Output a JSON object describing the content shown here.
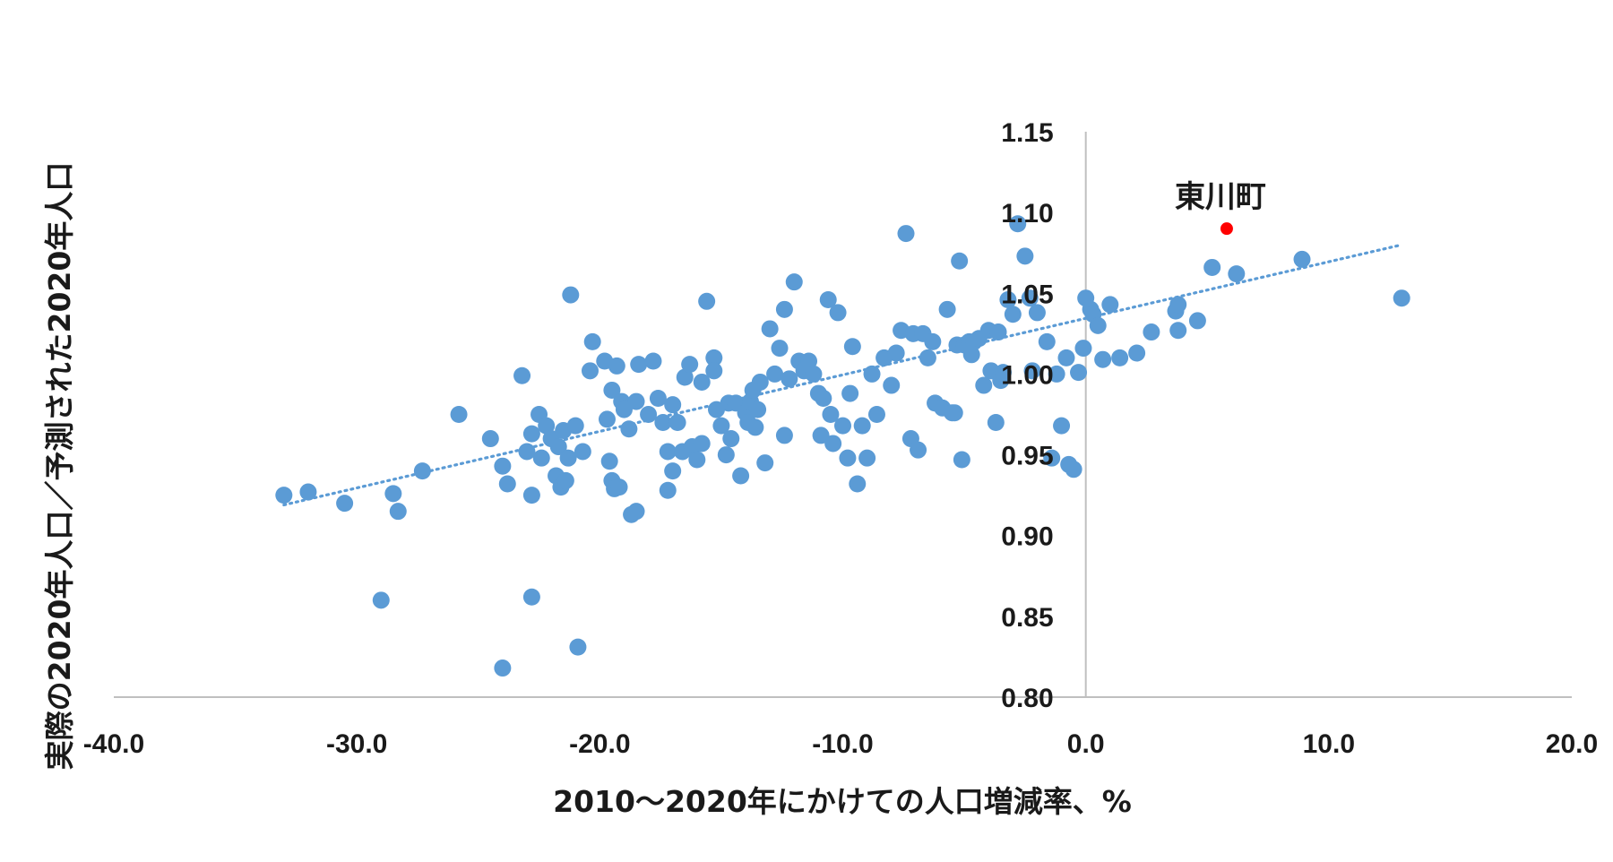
{
  "chart_data": {
    "type": "scatter",
    "xlabel": "2010～2020年にかけての人口増減率、%",
    "ylabel": "実際の2020年人口／予測された2020年人口",
    "xlim": [
      -40,
      20
    ],
    "ylim": [
      0.8,
      1.15
    ],
    "x_ticks": [
      "-40.0",
      "-30.0",
      "-20.0",
      "-10.0",
      "0.0",
      "10.0",
      "20.0"
    ],
    "y_ticks": [
      "0.80",
      "0.85",
      "0.90",
      "0.95",
      "1.00",
      "1.05",
      "1.10",
      "1.15"
    ],
    "grid": false,
    "colors": {
      "points": "#5b9bd5",
      "highlight": "#ff0000",
      "trend": "#5b9bd5",
      "axis": "#bfbfbf"
    },
    "trendline": {
      "type": "linear",
      "style": "dotted",
      "x": [
        -33,
        13
      ],
      "y": [
        0.919,
        1.08
      ]
    },
    "highlight": {
      "label": "東川町",
      "x": 5.8,
      "y": 1.09
    },
    "series": [
      {
        "points": [
          [
            -33.0,
            0.925
          ],
          [
            -32.0,
            0.927
          ],
          [
            -30.5,
            0.92
          ],
          [
            -29.0,
            0.86
          ],
          [
            -28.5,
            0.926
          ],
          [
            -28.3,
            0.915
          ],
          [
            -27.3,
            0.94
          ],
          [
            -25.8,
            0.975
          ],
          [
            -24.5,
            0.96
          ],
          [
            -24.0,
            0.943
          ],
          [
            -24.0,
            0.818
          ],
          [
            -23.8,
            0.932
          ],
          [
            -23.2,
            0.999
          ],
          [
            -23.0,
            0.952
          ],
          [
            -22.8,
            0.963
          ],
          [
            -22.8,
            0.925
          ],
          [
            -22.8,
            0.862
          ],
          [
            -22.5,
            0.975
          ],
          [
            -22.4,
            0.948
          ],
          [
            -22.2,
            0.968
          ],
          [
            -22.0,
            0.96
          ],
          [
            -21.8,
            0.937
          ],
          [
            -21.7,
            0.955
          ],
          [
            -21.6,
            0.93
          ],
          [
            -21.5,
            0.965
          ],
          [
            -21.4,
            0.934
          ],
          [
            -21.3,
            0.948
          ],
          [
            -21.2,
            1.049
          ],
          [
            -21.0,
            0.968
          ],
          [
            -20.9,
            0.831
          ],
          [
            -20.7,
            0.952
          ],
          [
            -20.4,
            1.002
          ],
          [
            -20.3,
            1.02
          ],
          [
            -19.8,
            1.008
          ],
          [
            -19.7,
            0.972
          ],
          [
            -19.6,
            0.946
          ],
          [
            -19.5,
            0.99
          ],
          [
            -19.5,
            0.934
          ],
          [
            -19.4,
            0.929
          ],
          [
            -19.3,
            1.005
          ],
          [
            -19.2,
            0.93
          ],
          [
            -19.1,
            0.983
          ],
          [
            -19.0,
            0.978
          ],
          [
            -18.8,
            0.966
          ],
          [
            -18.7,
            0.913
          ],
          [
            -18.5,
            0.915
          ],
          [
            -18.5,
            0.983
          ],
          [
            -18.4,
            1.006
          ],
          [
            -18.0,
            0.975
          ],
          [
            -17.8,
            1.008
          ],
          [
            -17.6,
            0.985
          ],
          [
            -17.4,
            0.97
          ],
          [
            -17.2,
            0.952
          ],
          [
            -17.2,
            0.928
          ],
          [
            -17.0,
            0.94
          ],
          [
            -17.0,
            0.981
          ],
          [
            -16.8,
            0.97
          ],
          [
            -16.6,
            0.952
          ],
          [
            -16.5,
            0.998
          ],
          [
            -16.3,
            1.006
          ],
          [
            -16.2,
            0.955
          ],
          [
            -16.0,
            0.947
          ],
          [
            -15.8,
            0.995
          ],
          [
            -15.8,
            0.957
          ],
          [
            -15.6,
            1.045
          ],
          [
            -15.3,
            1.01
          ],
          [
            -15.3,
            1.002
          ],
          [
            -15.2,
            0.978
          ],
          [
            -15.0,
            0.968
          ],
          [
            -14.8,
            0.95
          ],
          [
            -14.7,
            0.982
          ],
          [
            -14.6,
            0.96
          ],
          [
            -14.4,
            0.982
          ],
          [
            -14.2,
            0.937
          ],
          [
            -14.0,
            0.976
          ],
          [
            -13.9,
            0.97
          ],
          [
            -13.8,
            0.983
          ],
          [
            -13.7,
            0.99
          ],
          [
            -13.6,
            0.967
          ],
          [
            -13.5,
            0.978
          ],
          [
            -13.4,
            0.995
          ],
          [
            -13.2,
            0.945
          ],
          [
            -13.0,
            1.028
          ],
          [
            -12.8,
            1.0
          ],
          [
            -12.6,
            1.016
          ],
          [
            -12.4,
            1.04
          ],
          [
            -12.4,
            0.962
          ],
          [
            -12.2,
            0.997
          ],
          [
            -12.0,
            1.057
          ],
          [
            -11.8,
            1.008
          ],
          [
            -11.6,
            1.002
          ],
          [
            -11.4,
            1.008
          ],
          [
            -11.2,
            1.0
          ],
          [
            -11.0,
            0.988
          ],
          [
            -10.9,
            0.962
          ],
          [
            -10.8,
            0.985
          ],
          [
            -10.6,
            1.046
          ],
          [
            -10.5,
            0.975
          ],
          [
            -10.4,
            0.957
          ],
          [
            -10.2,
            1.038
          ],
          [
            -10.0,
            0.968
          ],
          [
            -9.8,
            0.948
          ],
          [
            -9.7,
            0.988
          ],
          [
            -9.6,
            1.017
          ],
          [
            -9.4,
            0.932
          ],
          [
            -9.2,
            0.968
          ],
          [
            -9.0,
            0.948
          ],
          [
            -8.8,
            1.0
          ],
          [
            -8.6,
            0.975
          ],
          [
            -8.3,
            1.01
          ],
          [
            -8.0,
            0.993
          ],
          [
            -7.8,
            1.013
          ],
          [
            -7.6,
            1.027
          ],
          [
            -7.4,
            1.087
          ],
          [
            -7.2,
            0.96
          ],
          [
            -7.1,
            1.025
          ],
          [
            -6.9,
            0.953
          ],
          [
            -6.7,
            1.025
          ],
          [
            -6.5,
            1.01
          ],
          [
            -6.3,
            1.02
          ],
          [
            -6.2,
            0.982
          ],
          [
            -5.9,
            0.979
          ],
          [
            -5.7,
            1.04
          ],
          [
            -5.5,
            0.976
          ],
          [
            -5.4,
            0.976
          ],
          [
            -5.3,
            1.018
          ],
          [
            -5.2,
            1.07
          ],
          [
            -5.1,
            0.947
          ],
          [
            -5.0,
            1.018
          ],
          [
            -4.8,
            1.02
          ],
          [
            -4.7,
            1.012
          ],
          [
            -4.6,
            1.02
          ],
          [
            -4.4,
            1.022
          ],
          [
            -4.2,
            0.993
          ],
          [
            -4.0,
            1.027
          ],
          [
            -3.9,
            1.002
          ],
          [
            -3.7,
            0.97
          ],
          [
            -3.6,
            1.026
          ],
          [
            -3.5,
            0.996
          ],
          [
            -3.4,
            1.001
          ],
          [
            -3.2,
            1.046
          ],
          [
            -3.0,
            1.037
          ],
          [
            -2.8,
            1.093
          ],
          [
            -2.5,
            1.073
          ],
          [
            -2.3,
            1.047
          ],
          [
            -2.2,
            1.002
          ],
          [
            -2.0,
            1.038
          ],
          [
            -1.6,
            1.02
          ],
          [
            -1.4,
            0.948
          ],
          [
            -1.2,
            1.0
          ],
          [
            -1.0,
            0.968
          ],
          [
            -0.8,
            1.01
          ],
          [
            -0.7,
            0.944
          ],
          [
            -0.5,
            0.941
          ],
          [
            -0.3,
            1.001
          ],
          [
            -0.1,
            1.016
          ],
          [
            0.0,
            1.047
          ],
          [
            0.2,
            1.04
          ],
          [
            0.3,
            1.037
          ],
          [
            0.5,
            1.03
          ],
          [
            0.7,
            1.009
          ],
          [
            1.0,
            1.043
          ],
          [
            1.4,
            1.01
          ],
          [
            2.1,
            1.013
          ],
          [
            2.7,
            1.026
          ],
          [
            3.7,
            1.039
          ],
          [
            3.8,
            1.043
          ],
          [
            3.8,
            1.027
          ],
          [
            4.6,
            1.033
          ],
          [
            5.2,
            1.066
          ],
          [
            6.2,
            1.062
          ],
          [
            8.9,
            1.071
          ],
          [
            13.0,
            1.047
          ]
        ]
      }
    ]
  }
}
